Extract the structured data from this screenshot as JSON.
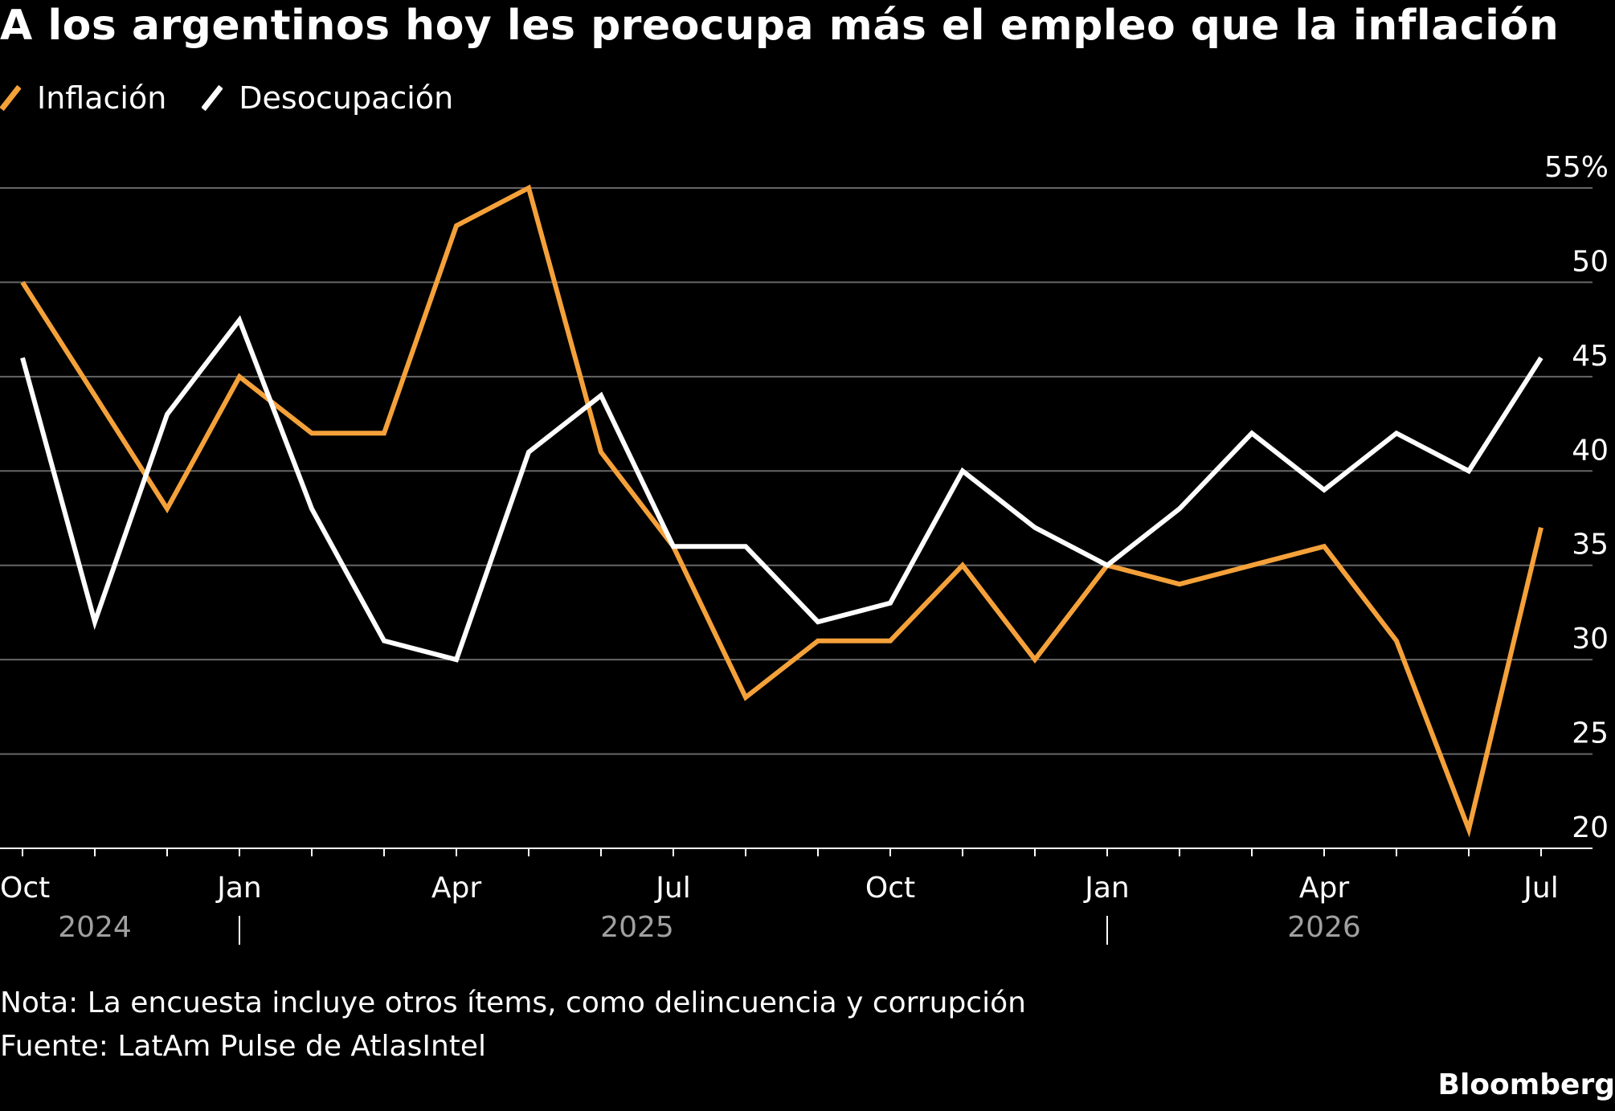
{
  "title": "A los argentinos hoy les preocupa más el empleo que la inflación",
  "notes": {
    "nota": "Nota: La encuesta incluye otros ítems, como delincuencia y corrupción",
    "fuente": "Fuente: LatAm Pulse de AtlasIntel"
  },
  "brand": "Bloomberg",
  "colors": {
    "background": "#000000",
    "inflacion": "#f5a13a",
    "desocupacion": "#ffffff",
    "grid": "#666666"
  },
  "chart_data": {
    "type": "line",
    "title": "A los argentinos hoy les preocupa más el empleo que la inflación",
    "xlabel": "",
    "ylabel": "",
    "x": [
      "2024-10",
      "2024-11",
      "2024-12",
      "2025-01",
      "2025-02",
      "2025-03",
      "2025-04",
      "2025-05",
      "2025-06",
      "2025-07",
      "2025-08",
      "2025-09",
      "2025-10",
      "2025-11",
      "2025-12",
      "2026-01",
      "2026-02",
      "2026-03",
      "2026-04",
      "2026-05",
      "2026-06",
      "2026-07"
    ],
    "series": [
      {
        "name": "Inflación",
        "color": "#f5a13a",
        "values": [
          50,
          44,
          38,
          45,
          42,
          42,
          53,
          55,
          41,
          36,
          28,
          31,
          31,
          35,
          30,
          35,
          34,
          35,
          36,
          31,
          21,
          37
        ]
      },
      {
        "name": "Desocupación",
        "color": "#ffffff",
        "values": [
          46,
          32,
          43,
          48,
          38,
          31,
          30,
          41,
          44,
          36,
          36,
          32,
          33,
          40,
          37,
          35,
          38,
          42,
          39,
          42,
          40,
          46
        ]
      }
    ],
    "ylim": [
      20,
      55
    ],
    "yticks": [
      20,
      25,
      30,
      35,
      40,
      45,
      50,
      55
    ],
    "ytick_labels": [
      "20",
      "25",
      "30",
      "35",
      "40",
      "45",
      "50",
      "55%"
    ],
    "xtick_labels": [
      {
        "x": "2024-10",
        "label": "Oct"
      },
      {
        "x": "2025-01",
        "label": "Jan"
      },
      {
        "x": "2025-04",
        "label": "Apr"
      },
      {
        "x": "2025-07",
        "label": "Jul"
      },
      {
        "x": "2025-10",
        "label": "Oct"
      },
      {
        "x": "2026-01",
        "label": "Jan"
      },
      {
        "x": "2026-04",
        "label": "Apr"
      },
      {
        "x": "2026-07",
        "label": "Jul"
      }
    ],
    "year_labels": [
      {
        "label": "2024",
        "from": "2024-10",
        "to": "2024-12"
      },
      {
        "label": "2025",
        "from": "2025-01",
        "to": "2025-12"
      },
      {
        "label": "2026",
        "from": "2026-01",
        "to": "2026-07"
      }
    ],
    "year_dividers": [
      "2025-01",
      "2026-01"
    ],
    "grid": true,
    "legend": "top-left"
  }
}
